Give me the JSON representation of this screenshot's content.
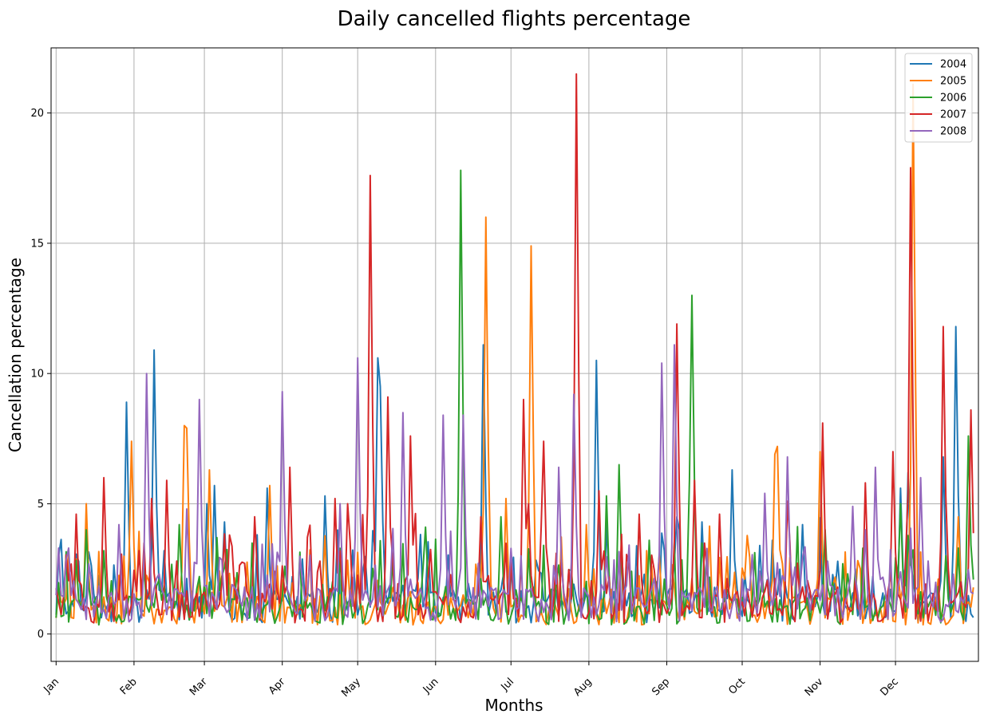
{
  "chart_data": {
    "type": "line",
    "title": "Daily cancelled flights percentage",
    "xlabel": "Months",
    "ylabel": "Cancellation percentage",
    "x_ticks": [
      "Jan",
      "Feb",
      "Mar",
      "Apr",
      "May",
      "Jun",
      "Jul",
      "Aug",
      "Sep",
      "Oct",
      "Nov",
      "Dec"
    ],
    "x_tick_days": [
      1,
      32,
      60,
      91,
      121,
      152,
      182,
      213,
      244,
      274,
      305,
      335
    ],
    "xlim": [
      -1,
      368
    ],
    "ylim": [
      -1.05,
      22.5
    ],
    "y_ticks": [
      0,
      5,
      10,
      15,
      20
    ],
    "grid": true,
    "legend_position": "top-right",
    "series": [
      {
        "name": "2004",
        "color": "#1f77b4",
        "base": 1.2,
        "seed": 11,
        "peaks": [
          [
            29,
            8.9
          ],
          [
            40,
            10.9
          ],
          [
            44,
            3.2
          ],
          [
            61,
            5.0
          ],
          [
            64,
            5.7
          ],
          [
            68,
            4.3
          ],
          [
            85,
            5.6
          ],
          [
            108,
            5.3
          ],
          [
            129,
            10.6
          ],
          [
            130,
            9.5
          ],
          [
            171,
            11.1
          ],
          [
            216,
            10.5
          ],
          [
            226,
            3.2
          ],
          [
            243,
            3.2
          ],
          [
            248,
            4.5
          ],
          [
            258,
            4.3
          ],
          [
            270,
            6.3
          ],
          [
            286,
            3.6
          ],
          [
            298,
            4.2
          ],
          [
            337,
            5.6
          ],
          [
            340,
            6.2
          ],
          [
            354,
            6.8
          ],
          [
            359,
            11.8
          ],
          [
            368,
            4.8
          ]
        ]
      },
      {
        "name": "2005",
        "color": "#ff7f0e",
        "base": 1.0,
        "seed": 23,
        "peaks": [
          [
            13,
            5.0
          ],
          [
            31,
            7.4
          ],
          [
            52,
            8.0
          ],
          [
            53,
            7.9
          ],
          [
            62,
            6.3
          ],
          [
            86,
            5.7
          ],
          [
            180,
            5.2
          ],
          [
            172,
            16.0
          ],
          [
            190,
            14.9
          ],
          [
            212,
            4.2
          ],
          [
            238,
            2.6
          ],
          [
            287,
            6.9
          ],
          [
            288,
            7.2
          ],
          [
            305,
            7.0
          ],
          [
            342,
            21.1
          ],
          [
            360,
            4.5
          ],
          [
            368,
            4.2
          ]
        ]
      },
      {
        "name": "2006",
        "color": "#2ca02c",
        "base": 1.0,
        "seed": 37,
        "peaks": [
          [
            13,
            4.0
          ],
          [
            20,
            3.2
          ],
          [
            50,
            4.2
          ],
          [
            65,
            3.7
          ],
          [
            148,
            4.1
          ],
          [
            162,
            17.8
          ],
          [
            178,
            4.5
          ],
          [
            220,
            5.3
          ],
          [
            225,
            6.5
          ],
          [
            237,
            3.6
          ],
          [
            254,
            13.0
          ],
          [
            253,
            5.9
          ],
          [
            307,
            4.0
          ],
          [
            319,
            2.5
          ],
          [
            337,
            5.0
          ],
          [
            355,
            3.0
          ],
          [
            364,
            7.6
          ]
        ]
      },
      {
        "name": "2007",
        "color": "#d62728",
        "base": 1.2,
        "seed": 53,
        "peaks": [
          [
            9,
            4.6
          ],
          [
            20,
            6.0
          ],
          [
            34,
            3.2
          ],
          [
            39,
            5.2
          ],
          [
            45,
            5.9
          ],
          [
            70,
            3.8
          ],
          [
            80,
            4.5
          ],
          [
            94,
            6.4
          ],
          [
            106,
            2.8
          ],
          [
            112,
            5.2
          ],
          [
            117,
            5.0
          ],
          [
            126,
            17.6
          ],
          [
            133,
            9.1
          ],
          [
            142,
            7.6
          ],
          [
            170,
            4.5
          ],
          [
            189,
            5.0
          ],
          [
            187,
            9.0
          ],
          [
            195,
            7.4
          ],
          [
            208,
            21.5
          ],
          [
            217,
            5.5
          ],
          [
            233,
            4.6
          ],
          [
            248,
            11.9
          ],
          [
            255,
            5.9
          ],
          [
            265,
            4.6
          ],
          [
            292,
            5.1
          ],
          [
            306,
            8.1
          ],
          [
            323,
            5.8
          ],
          [
            334,
            7.0
          ],
          [
            341,
            17.9
          ],
          [
            354,
            11.8
          ],
          [
            365,
            8.6
          ]
        ]
      },
      {
        "name": "2008",
        "color": "#9467bd",
        "base": 1.3,
        "seed": 71,
        "peaks": [
          [
            2,
            3.3
          ],
          [
            6,
            3.3
          ],
          [
            26,
            4.2
          ],
          [
            37,
            10.0
          ],
          [
            53,
            4.8
          ],
          [
            58,
            9.0
          ],
          [
            91,
            9.3
          ],
          [
            114,
            5.0
          ],
          [
            121,
            10.6
          ],
          [
            139,
            8.5
          ],
          [
            155,
            8.4
          ],
          [
            163,
            8.4
          ],
          [
            201,
            6.4
          ],
          [
            207,
            9.2
          ],
          [
            242,
            10.4
          ],
          [
            247,
            11.1
          ],
          [
            283,
            5.4
          ],
          [
            292,
            6.8
          ],
          [
            318,
            4.9
          ],
          [
            327,
            6.4
          ],
          [
            345,
            6.0
          ],
          [
            368,
            3.5
          ]
        ]
      }
    ]
  }
}
